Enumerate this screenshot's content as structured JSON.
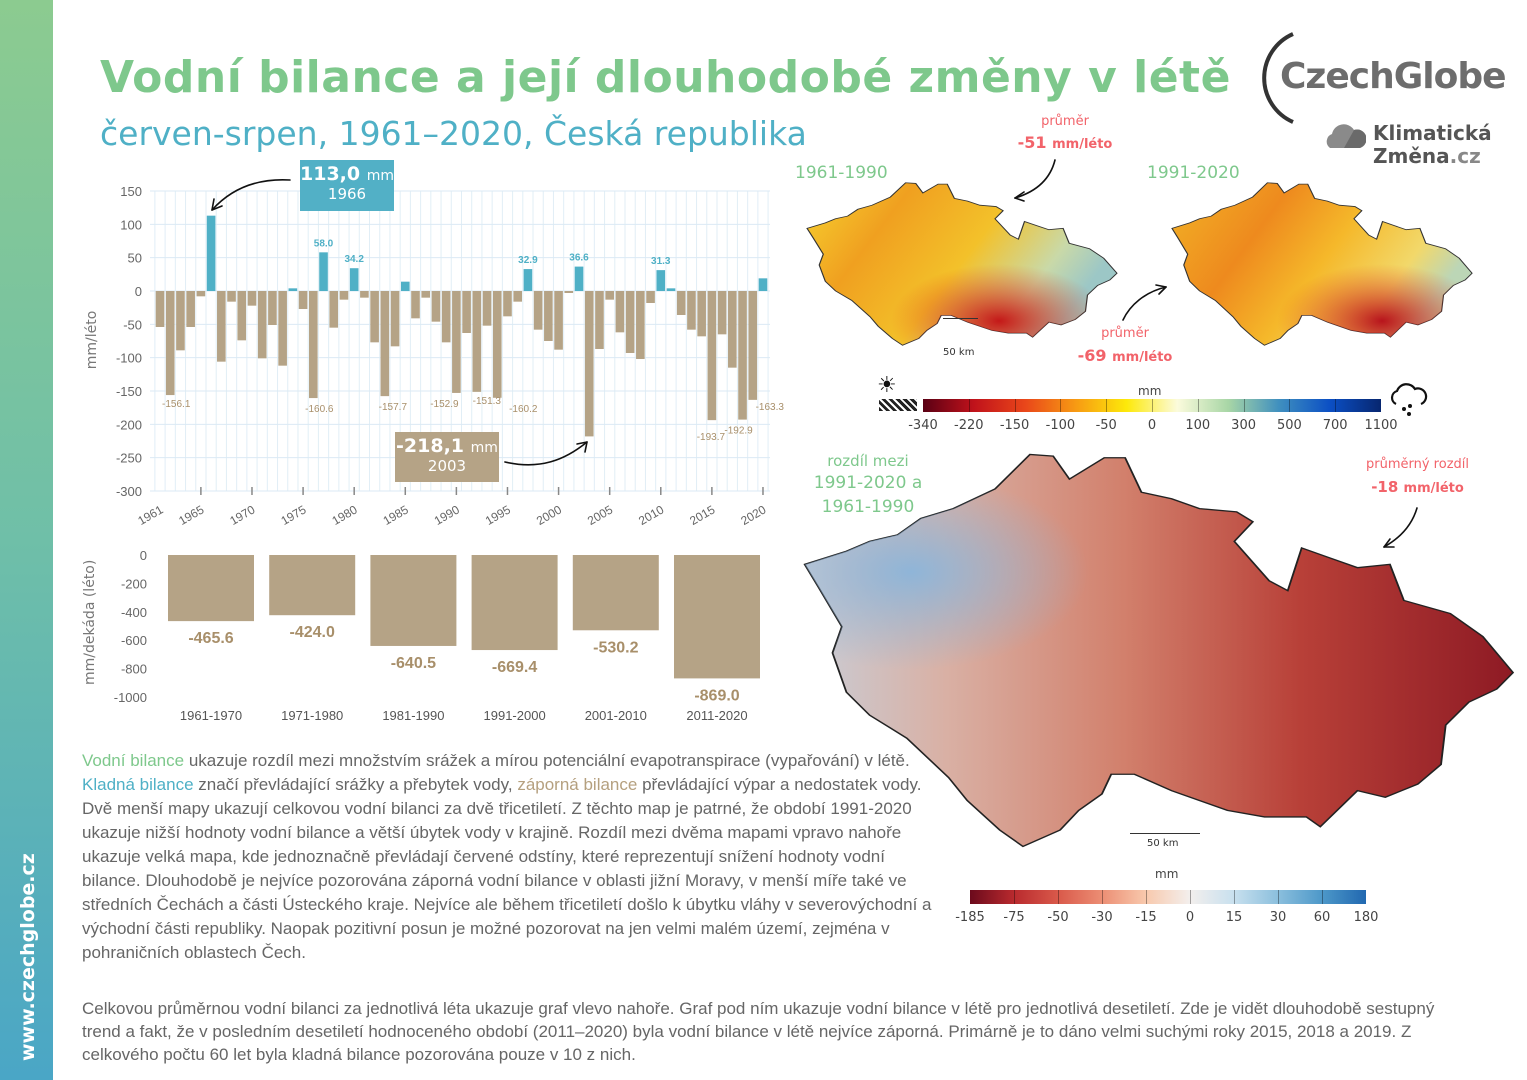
{
  "sidebar": {
    "url": "www.czechglobe.cz"
  },
  "header": {
    "title": "Vodní bilance a její dlouhodobé změny v létě",
    "subtitle": "červen-srpen, 1961–2020, Česká republika"
  },
  "logos": {
    "czechglobe": "CzechGlobe",
    "klimaticka_line1": "Klimatická",
    "klimaticka_line2": "Změna",
    "klimaticka_tld": ".cz"
  },
  "colors": {
    "positive": "#4fb0c6",
    "negative": "#b5a386",
    "title_green": "#7ec88c",
    "accent_red": "#f2636a"
  },
  "chart_data": [
    {
      "type": "bar",
      "ylabel": "mm/léto",
      "ylim": [
        -300,
        150
      ],
      "yticks": [
        "150",
        "100",
        "50",
        "0",
        "-50",
        "-100",
        "-150",
        "-200",
        "-250",
        "-300"
      ],
      "xticks": [
        "1961",
        "1965",
        "1970",
        "1975",
        "1980",
        "1985",
        "1990",
        "1995",
        "2000",
        "2005",
        "2010",
        "2015",
        "2020"
      ],
      "grid": true,
      "x": [
        1961,
        1962,
        1963,
        1964,
        1965,
        1966,
        1967,
        1968,
        1969,
        1970,
        1971,
        1972,
        1973,
        1974,
        1975,
        1976,
        1977,
        1978,
        1979,
        1980,
        1981,
        1982,
        1983,
        1984,
        1985,
        1986,
        1987,
        1988,
        1989,
        1990,
        1991,
        1992,
        1993,
        1994,
        1995,
        1996,
        1997,
        1998,
        1999,
        2000,
        2001,
        2002,
        2003,
        2004,
        2005,
        2006,
        2007,
        2008,
        2009,
        2010,
        2011,
        2012,
        2013,
        2014,
        2015,
        2016,
        2017,
        2018,
        2019,
        2020
      ],
      "values": [
        -54,
        -156.1,
        -89,
        -54,
        -8,
        113.0,
        -106,
        -16,
        -74,
        -22,
        -101,
        -51,
        -112,
        4,
        -27,
        -160.6,
        58.0,
        -55,
        -13,
        34.2,
        -10,
        -77,
        -157.7,
        -83,
        14,
        -41,
        -10,
        -46,
        -77,
        -152.9,
        -63,
        -151.3,
        -52,
        -160.2,
        -38,
        -16,
        32.9,
        -58,
        -75,
        -88,
        -3,
        36.6,
        -218.1,
        -87,
        -13,
        -62,
        -93,
        -102,
        -18,
        31.3,
        4,
        -36,
        -58,
        -68,
        -193.7,
        -65,
        -115,
        -192.9,
        -163.3,
        19
      ],
      "data_labels": [
        {
          "year": 1962,
          "text": "-156.1"
        },
        {
          "year": 1976,
          "text": "-160.6"
        },
        {
          "year": 1977,
          "text": "58.0"
        },
        {
          "year": 1980,
          "text": "34.2"
        },
        {
          "year": 1983,
          "text": "-157.7"
        },
        {
          "year": 1990,
          "text": "-152.9"
        },
        {
          "year": 1992,
          "text": "-151.3"
        },
        {
          "year": 1994,
          "text": "-160.2"
        },
        {
          "year": 1997,
          "text": "32.9"
        },
        {
          "year": 2002,
          "text": "36.6"
        },
        {
          "year": 2010,
          "text": "31.3"
        },
        {
          "year": 2015,
          "text": "-193.7"
        },
        {
          "year": 2018,
          "text": "-192.9"
        },
        {
          "year": 2019,
          "text": "-163.3"
        }
      ],
      "annotations": [
        {
          "value": "113,0",
          "unit": "mm",
          "year": "1966"
        },
        {
          "value": "-218,1",
          "unit": "mm",
          "year": "2003"
        }
      ]
    },
    {
      "type": "bar",
      "ylabel": "mm/dekáda (léto)",
      "ylim": [
        -1000,
        0
      ],
      "yticks": [
        "0",
        "-200",
        "-400",
        "-600",
        "-800",
        "-1000"
      ],
      "categories": [
        "1961-1970",
        "1971-1980",
        "1981-1990",
        "1991-2000",
        "2001-2010",
        "2011-2020"
      ],
      "values": [
        -465.6,
        -424.0,
        -640.5,
        -669.4,
        -530.2,
        -869.0
      ],
      "labels": [
        "-465.6",
        "-424.0",
        "-640.5",
        "-669.4",
        "-530.2",
        "-869.0"
      ]
    }
  ],
  "maps": {
    "period1": "1961-1990",
    "period2": "1991-2020",
    "avg_label": "průměr",
    "avg1": "-51",
    "avg2": "-69",
    "unit": "mm/léto",
    "scale": "50 km",
    "legend_unit": "mm",
    "legend_ticks": [
      "-340",
      "-220",
      "-150",
      "-100",
      "-50",
      "0",
      "100",
      "300",
      "500",
      "700",
      "1100"
    ],
    "legend_colors": [
      "#5a0014",
      "#c0121b",
      "#e9461a",
      "#f79a13",
      "#fde90a",
      "#fbfbdc",
      "#a8d6a6",
      "#3f8fbf",
      "#0b4fc4",
      "#07266f"
    ],
    "dry_icon": "sun-icon",
    "wet_icon": "rain-cloud-icon",
    "diff_label1": "rozdíl mezi",
    "diff_label2": "1991-2020 a",
    "diff_label3": "1961-1990",
    "diff_avg_label": "průměrný rozdíl",
    "diff_avg": "-18",
    "diff_legend_ticks": [
      "-185",
      "-75",
      "-50",
      "-30",
      "-15",
      "0",
      "15",
      "30",
      "60",
      "180"
    ],
    "diff_legend_colors": [
      "#6b0a1c",
      "#b92a2e",
      "#d9594a",
      "#ec8e74",
      "#f8c9ad",
      "#f3efed",
      "#c8e0ee",
      "#8bbfdd",
      "#4d98c9",
      "#2168b0"
    ]
  },
  "text": {
    "p1_hl1": "Vodní bilance",
    "p1_t1": " ukazuje rozdíl mezi množstvím srážek a mírou potenciální evapotranspirace (vypařování) v létě. ",
    "p1_hl2": "Kladná bilance",
    "p1_t2": " značí převládající srážky a přebytek vody, ",
    "p1_hl3": "záporná bilance",
    "p1_t3": " převládající výpar a nedostatek vody. Dvě menší mapy ukazují celkovou vodní bilanci za dvě třicetiletí. Z těchto map je patrné, že období 1991-2020 ukazuje nižší hodnoty vodní bilance a větší úbytek vody v krajině. Rozdíl mezi dvěma mapami vpravo nahoře ukazuje velká mapa, kde jednoznačně převládají červené odstíny, které reprezentují snížení hodnoty vodní bilance. Dlouhodobě je nejvíce pozorována záporná vodní bilance v oblasti jižní Moravy, v menší míře také ve středních Čechách a části Ústeckého kraje. Nejvíce ale během třicetiletí došlo k úbytku vláhy v severovýchodní a východní části republiky. Naopak pozitivní posun je možné pozorovat na jen velmi malém území, zejména v pohraničních oblastech Čech.",
    "p2": "Celkovou průměrnou vodní bilanci za jednotlivá léta ukazuje graf vlevo nahoře. Graf pod ním ukazuje vodní bilance v létě pro jednotlivá desetiletí. Zde je vidět dlouhodobě sestupný trend a fakt, že v posledním desetiletí hodnoceného období (2011–2020) byla vodní bilance v létě nejvíce záporná. Primárně je to dáno velmi suchými roky 2015, 2018 a 2019. Z celkového počtu 60 let byla kladná bilance pozorována pouze v 10 z nich."
  }
}
